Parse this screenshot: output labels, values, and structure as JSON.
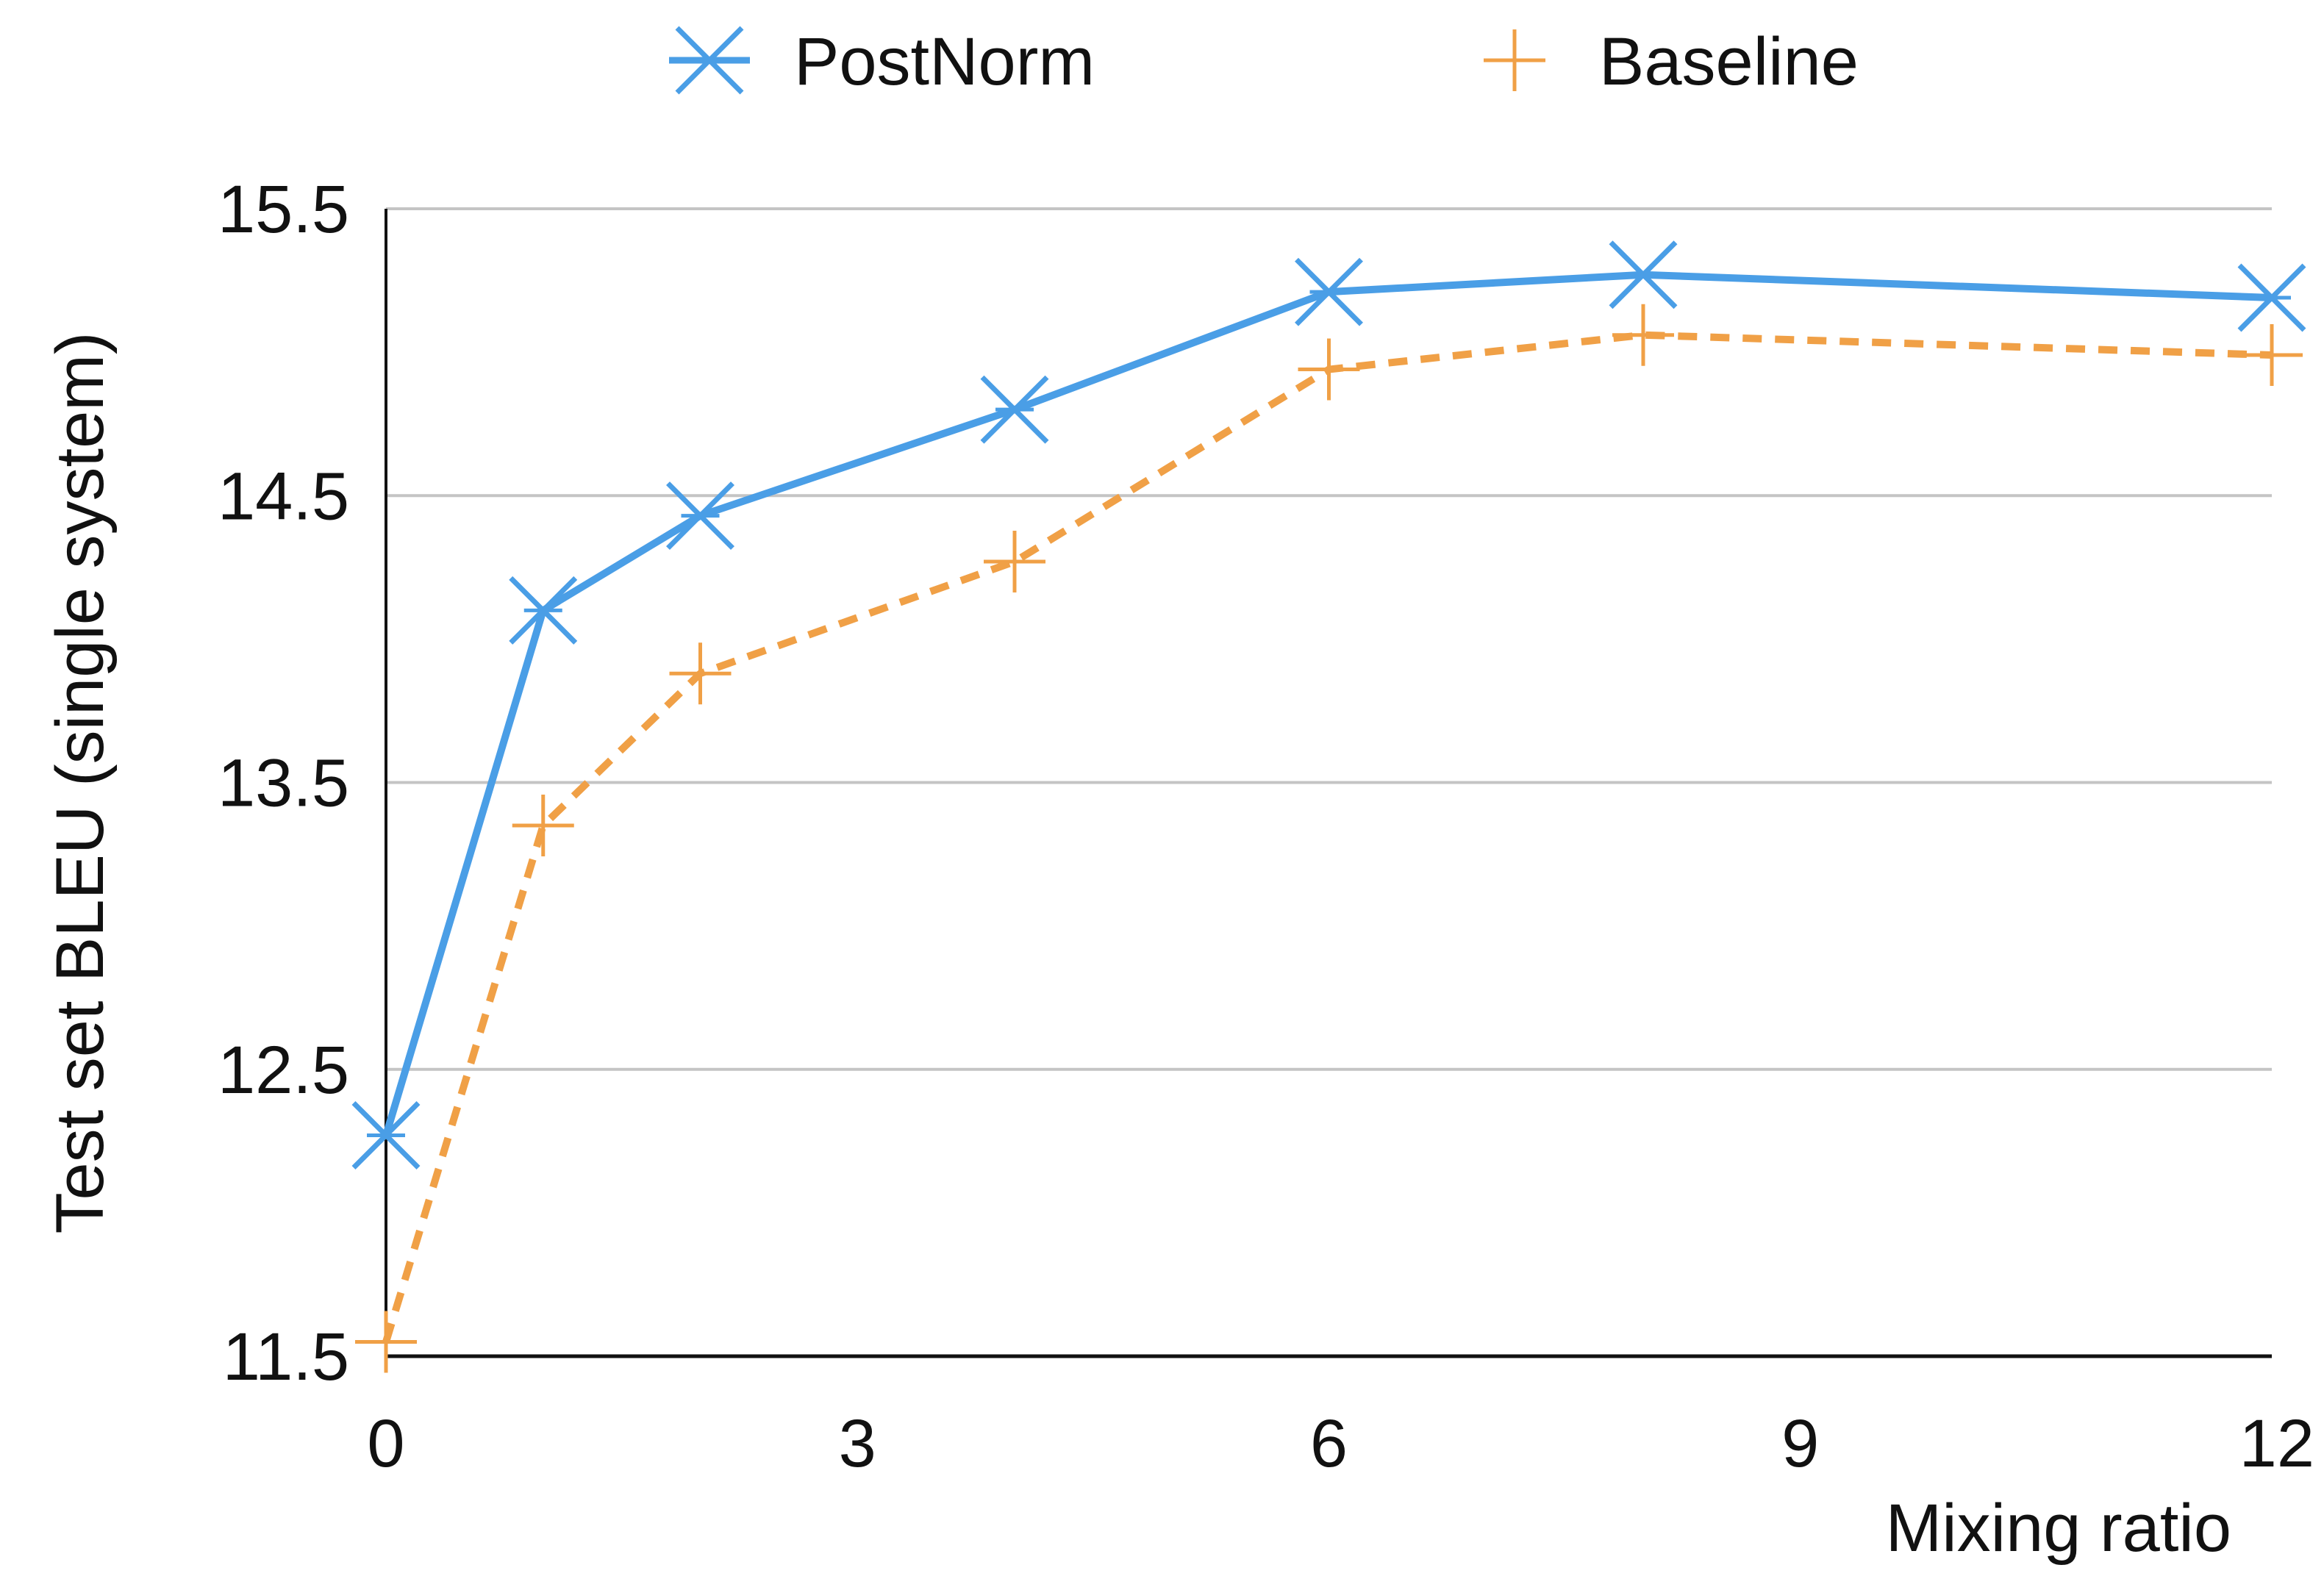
{
  "chart_data": {
    "type": "line",
    "title": "",
    "xlabel": "Mixing ratio",
    "ylabel": "Test set BLEU (single system)",
    "xlim": [
      0,
      12
    ],
    "ylim": [
      11.5,
      15.5
    ],
    "xticks": [
      0,
      3,
      6,
      9,
      12
    ],
    "yticks": [
      11.5,
      12.5,
      13.5,
      14.5,
      15.5
    ],
    "xtick_labels": [
      "0",
      "3",
      "6",
      "9",
      "12"
    ],
    "ytick_labels": [
      "11.5",
      "12.5",
      "13.5",
      "14.5",
      "15.5"
    ],
    "grid": "horizontal",
    "legend_position": "top",
    "series": [
      {
        "name": "PostNorm",
        "color": "#4a9ee6",
        "line_style": "solid",
        "marker": "asterisk",
        "x": [
          0,
          1,
          2,
          4,
          6,
          8,
          12
        ],
        "y": [
          12.27,
          14.1,
          14.43,
          14.8,
          15.21,
          15.27,
          15.19
        ]
      },
      {
        "name": "Baseline",
        "color": "#f0a046",
        "line_style": "dashed",
        "marker": "plus",
        "x": [
          0,
          1,
          2,
          4,
          6,
          8,
          12
        ],
        "y": [
          11.55,
          13.35,
          13.88,
          14.27,
          14.94,
          15.06,
          14.99
        ]
      }
    ]
  }
}
